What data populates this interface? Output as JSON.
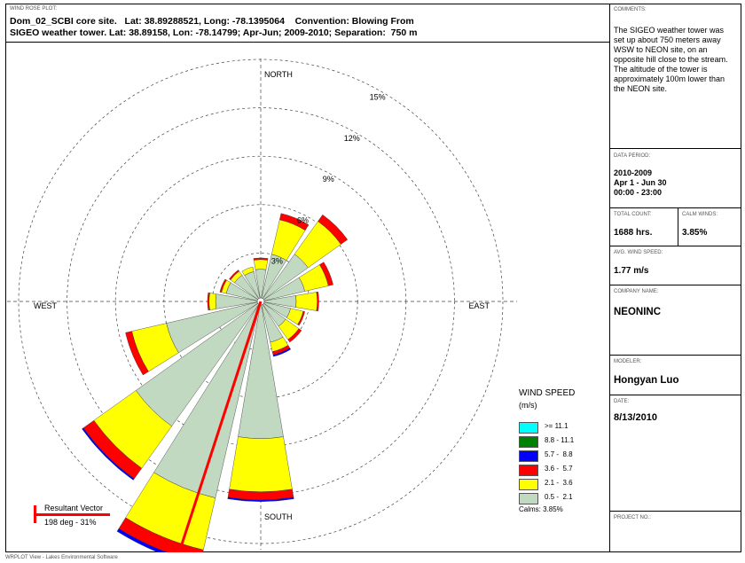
{
  "header": {
    "caption": "WIND ROSE PLOT:",
    "title_line1": "Dom_02_SCBI core site.   Lat: 38.89288521, Long: -78.1395064    Convention: Blowing From",
    "title_line2": "SIGEO weather tower. Lat: 38.89158, Lon: -78.14799; Apr-Jun; 2009-2010; Separation:  750 m"
  },
  "sidebar": {
    "comments_caption": "COMMENTS:",
    "comments_lines": [
      "The SIGEO weather tower was",
      "set up about 750 meters away",
      "WSW to NEON site, on an",
      "opposite hill close to the stream.",
      "The altitude of the tower is",
      "approximately 100m lower than",
      "the NEON site."
    ],
    "data_period_caption": "DATA PERIOD:",
    "data_period_lines": [
      "2010-2009",
      "Apr 1 - Jun 30",
      "00:00  -  23:00"
    ],
    "total_count_caption": "TOTAL COUNT:",
    "total_count": "1688 hrs.",
    "calm_winds_caption": "CALM WINDS:",
    "calm_winds": "3.85%",
    "avg_wind_caption": "AVG. WIND SPEED:",
    "avg_wind": "1.77 m/s",
    "company_caption": "COMPANY NAME:",
    "company": "NEONINC",
    "modeler_caption": "MODELER:",
    "modeler": "Hongyan Luo",
    "date_caption": "DATE:",
    "date": "8/13/2010",
    "project_caption": "PROJECT NO.:"
  },
  "footer": "WRPLOT View - Lakes Environmental Software",
  "colors": {
    "calm_bin": "#c0d9c0",
    "bin_2": "#ffff00",
    "bin_3": "#ff0000",
    "bin_4": "#0000ff",
    "bin_5": "#008000",
    "bin_6": "#00ffff",
    "resultant": "#ff0000"
  },
  "chart_data": {
    "type": "wind-rose",
    "convention": "Blowing From",
    "directions": [
      "N",
      "NNE",
      "NE",
      "ENE",
      "E",
      "ESE",
      "SE",
      "SSE",
      "S",
      "SSW",
      "SW",
      "WSW",
      "W",
      "WNW",
      "NW",
      "NNW"
    ],
    "compass_labels": {
      "north": "NORTH",
      "east": "EAST",
      "south": "SOUTH",
      "west": "WEST"
    },
    "ring_labels": [
      "3%",
      "6%",
      "9%",
      "12%",
      "15%"
    ],
    "ring_values": [
      3,
      6,
      9,
      12,
      15
    ],
    "legend": {
      "title": "WIND SPEED",
      "unit": "(m/s)",
      "bins": [
        ">= 11.1",
        "8.8 - 11.1",
        "5.7 -  8.8",
        "3.6 -  5.7",
        "2.1 -  3.6",
        "0.5 -  2.1"
      ],
      "calms": "Calms: 3.85%"
    },
    "series": [
      {
        "name": "0.5 -  2.1",
        "values": [
          2.0,
          3.0,
          3.6,
          2.8,
          2.2,
          1.9,
          1.9,
          2.6,
          8.5,
          12.5,
          9.5,
          6.0,
          2.8,
          2.2,
          2.0,
          1.9
        ]
      },
      {
        "name": "2.1 -  3.6",
        "values": [
          0.6,
          2.2,
          2.5,
          1.5,
          1.3,
          0.8,
          1.0,
          0.6,
          3.3,
          3.3,
          3.2,
          2.2,
          0.4,
          0.3,
          0.3,
          0.3
        ]
      },
      {
        "name": "3.6 -  5.7",
        "values": [
          0.1,
          0.4,
          0.5,
          0.3,
          0.1,
          0.1,
          0.2,
          0.2,
          0.5,
          0.8,
          0.8,
          0.4,
          0.1,
          0.1,
          0.1,
          0.0
        ]
      },
      {
        "name": "5.7 -  8.8",
        "values": [
          0.0,
          0.0,
          0.0,
          0.0,
          0.0,
          0.0,
          0.0,
          0.1,
          0.1,
          0.2,
          0.1,
          0.0,
          0.0,
          0.0,
          0.0,
          0.0
        ]
      },
      {
        "name": "8.8 - 11.1",
        "values": [
          0,
          0,
          0,
          0,
          0,
          0,
          0,
          0,
          0,
          0,
          0,
          0,
          0,
          0,
          0,
          0
        ]
      },
      {
        "name": ">= 11.1",
        "values": [
          0,
          0,
          0,
          0,
          0,
          0,
          0,
          0,
          0,
          0,
          0,
          0,
          0,
          0,
          0,
          0
        ]
      }
    ],
    "resultant_vector": {
      "label": "Resultant Vector",
      "value": "198 deg - 31%",
      "direction_deg": 198,
      "percent": 31
    }
  }
}
